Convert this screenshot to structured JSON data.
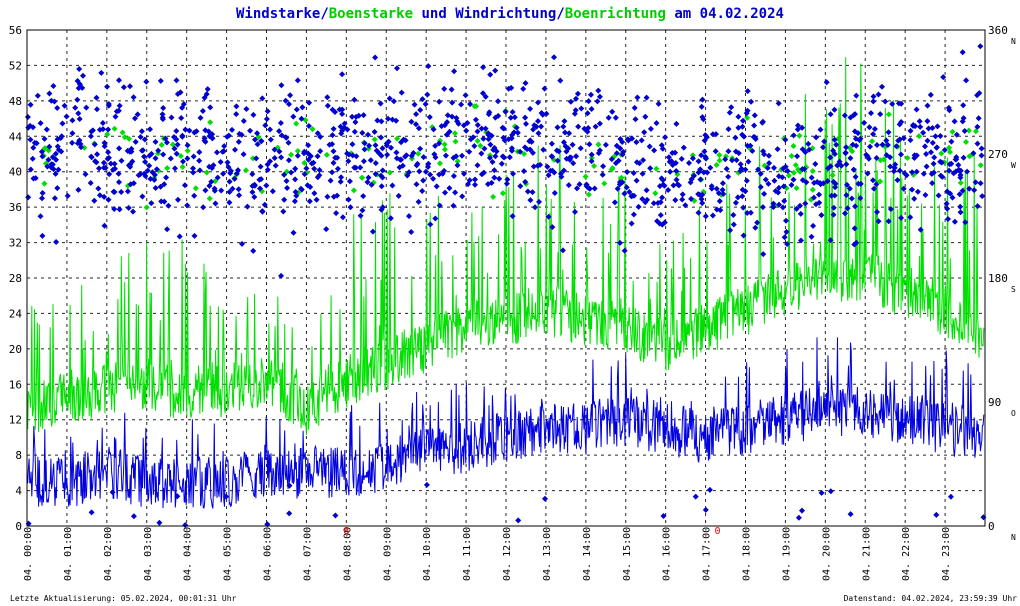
{
  "title": {
    "parts": [
      {
        "text": "Windstarke",
        "color": "#0000cc"
      },
      {
        "text": "/",
        "color": "#0000cc"
      },
      {
        "text": "Boenstarke",
        "color": "#00cc00"
      },
      {
        "text": " und ",
        "color": "#0000cc"
      },
      {
        "text": "Windrichtung",
        "color": "#0000cc"
      },
      {
        "text": "/",
        "color": "#0000cc"
      },
      {
        "text": "Boenrichtung",
        "color": "#00cc00"
      },
      {
        "text": " am 04.02.2024",
        "color": "#0000cc"
      }
    ]
  },
  "footer": {
    "left": "Letzte Aktualisierung: 05.02.2024, 00:01:31 Uhr",
    "right": "Datenstand: 04.02.2024, 23:59:39 Uhr"
  },
  "colors": {
    "wind": "#0000e0",
    "gust": "#00e000",
    "dir_marker": "#0000d0",
    "gust_dir_marker": "#00dd00",
    "red_mark": "#dd0000"
  },
  "chart_data": {
    "type": "line",
    "title": "Windstarke/Boenstarke und Windrichtung/Boenrichtung am 04.02.2024",
    "x_axis": {
      "range_hours": [
        0,
        24
      ],
      "tick_labels": [
        "04. 00:00",
        "04. 01:00",
        "04. 02:00",
        "04. 03:00",
        "04. 04:00",
        "04. 05:00",
        "04. 06:00",
        "04. 07:00",
        "04. 08:00",
        "04. 09:00",
        "04. 10:00",
        "04. 11:00",
        "04. 12:00",
        "04. 13:00",
        "04. 14:00",
        "04. 15:00",
        "04. 16:00",
        "04. 17:00",
        "04. 18:00",
        "04. 19:00",
        "04. 20:00",
        "04. 21:00",
        "04. 22:00",
        "04. 23:00"
      ]
    },
    "y_left": {
      "range": [
        0,
        56
      ],
      "ticks": [
        0,
        4,
        8,
        12,
        16,
        20,
        24,
        28,
        32,
        36,
        40,
        44,
        48,
        52,
        56
      ]
    },
    "y_right": {
      "range": [
        0,
        360
      ],
      "ticks": [
        0,
        90,
        180,
        270,
        360
      ],
      "cardinals": [
        "N",
        "O",
        "S",
        "W",
        "N"
      ]
    },
    "grid": true,
    "red_marks": [
      {
        "text": "8",
        "hour": 8.0
      },
      {
        "text": "0",
        "hour": 17.3
      }
    ],
    "series": [
      {
        "name": "Windstarke",
        "kind": "line",
        "hourly_levels": [
          5,
          5,
          6,
          5,
          4.5,
          5,
          6,
          6,
          6,
          7,
          8,
          9,
          10,
          11,
          11,
          12,
          11,
          10,
          11,
          12,
          13,
          13,
          12,
          11,
          10
        ],
        "hourly_peaks": [
          12,
          11,
          12,
          15,
          13,
          12,
          13,
          11,
          14,
          14,
          16,
          17,
          16,
          19,
          19,
          20,
          17,
          17,
          19,
          21,
          22,
          21,
          20,
          20,
          18
        ]
      },
      {
        "name": "Boenstarke",
        "kind": "line",
        "hourly_levels": [
          13,
          14,
          15,
          16,
          14,
          15,
          16,
          13,
          16,
          18,
          20,
          22,
          23,
          24,
          23,
          22,
          20,
          22,
          24,
          26,
          28,
          28,
          26,
          24,
          20
        ],
        "hourly_peaks": [
          25,
          27,
          28,
          35,
          33,
          26,
          28,
          24,
          36,
          38,
          38,
          42,
          40,
          45,
          42,
          40,
          34,
          38,
          42,
          48,
          52,
          54,
          46,
          44,
          42
        ]
      },
      {
        "name": "Windrichtung",
        "kind": "scatter",
        "hourly_mean_deg": [
          275,
          280,
          270,
          265,
          272,
          262,
          268,
          270,
          268,
          272,
          275,
          278,
          275,
          270,
          268,
          265,
          262,
          258,
          260,
          255,
          258,
          265,
          270,
          272,
          275
        ],
        "spread_deg": 45
      },
      {
        "name": "Boenrichtung",
        "kind": "scatter",
        "hourly_mean_deg": [
          275,
          280,
          270,
          265,
          272,
          262,
          268,
          270,
          268,
          272,
          275,
          278,
          275,
          270,
          268,
          265,
          262,
          258,
          260,
          255,
          258,
          265,
          270,
          272,
          275
        ],
        "spread_deg": 25
      }
    ]
  }
}
